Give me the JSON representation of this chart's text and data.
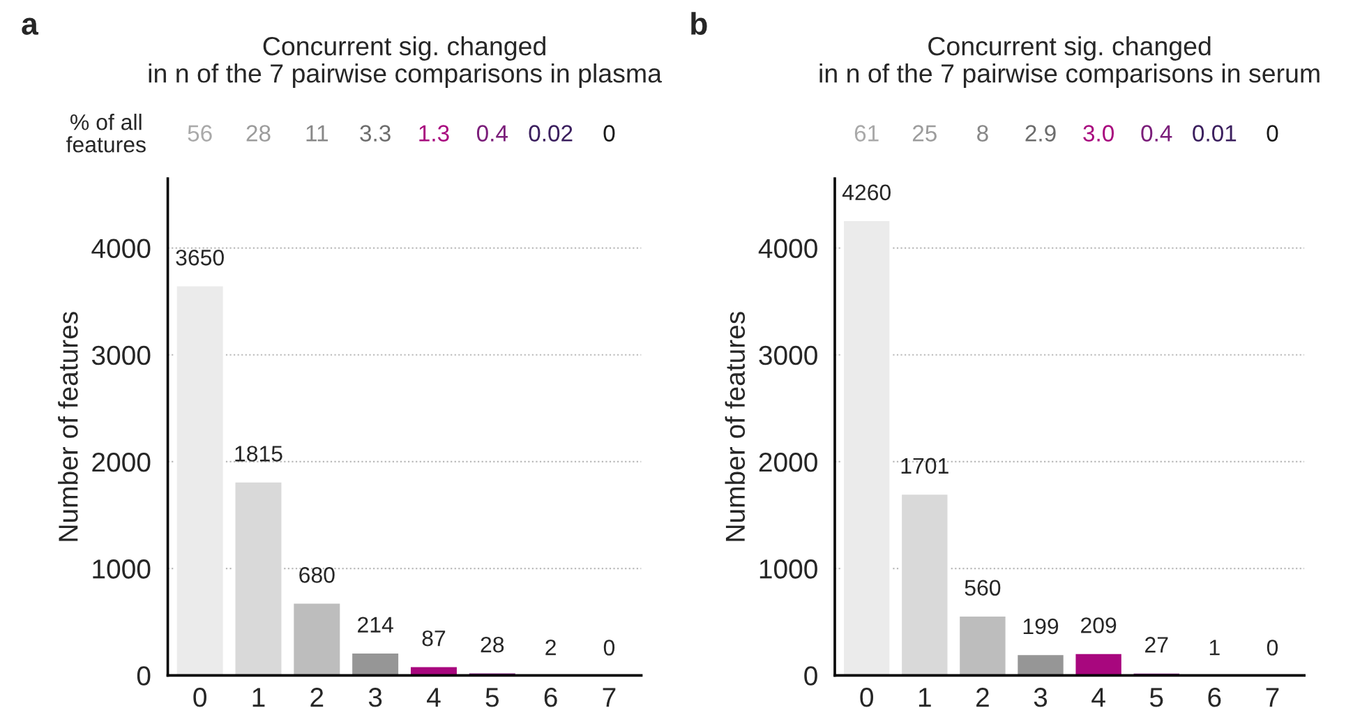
{
  "chart_data": [
    {
      "type": "bar",
      "title": "Concurrent sig. changed\nin n of the 7 pairwise comparisons in plasma",
      "ylabel": "Number of features",
      "categories": [
        "0",
        "1",
        "2",
        "3",
        "4",
        "5",
        "6",
        "7"
      ],
      "values": [
        3650,
        1815,
        680,
        214,
        87,
        28,
        2,
        0
      ],
      "colors": [
        "#ebebeb",
        "#d9d9d9",
        "#bdbdbd",
        "#969696",
        "#a8077e",
        "#7b1e7a",
        "#3b1f5e",
        null
      ],
      "data_labels": true,
      "ylim": [
        0,
        4650
      ],
      "yticks": [
        0,
        1000,
        2000,
        3000,
        4000
      ],
      "grid": "y",
      "annotations": [
        "a",
        "% of all\nfeatures",
        "56",
        "28",
        "11",
        "3.3",
        "1.3",
        "0.4",
        "0.02",
        "0"
      ]
    },
    {
      "type": "bar",
      "title": "Concurrent sig. changed\nin n of the 7 pairwise comparisons in serum",
      "ylabel": "Number of features",
      "categories": [
        "0",
        "1",
        "2",
        "3",
        "4",
        "5",
        "6",
        "7"
      ],
      "values": [
        4260,
        1701,
        560,
        199,
        209,
        27,
        1,
        0
      ],
      "colors": [
        "#ebebeb",
        "#d9d9d9",
        "#bdbdbd",
        "#969696",
        "#a8077e",
        "#7b1e7a",
        "#3b1f5e",
        null
      ],
      "data_labels": true,
      "ylim": [
        0,
        4650
      ],
      "yticks": [
        0,
        1000,
        2000,
        3000,
        4000
      ],
      "grid": "y",
      "annotations": [
        "b",
        "61",
        "25",
        "8",
        "2.9",
        "3.0",
        "0.4",
        "0.01",
        "0"
      ]
    }
  ]
}
